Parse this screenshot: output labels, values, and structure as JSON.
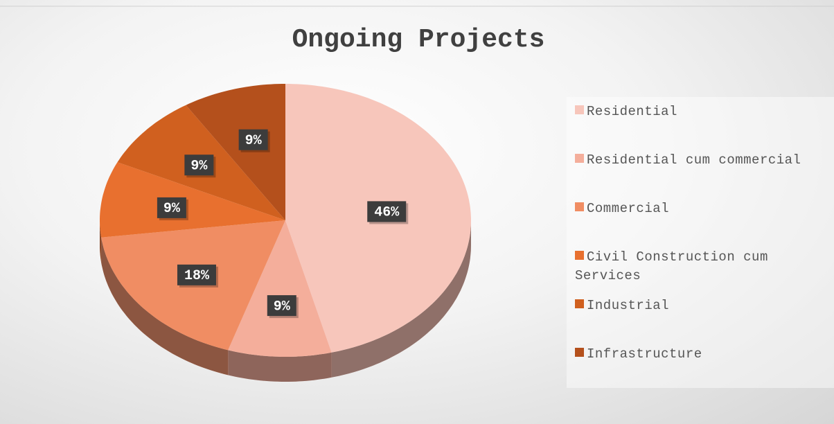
{
  "chart_data": {
    "type": "pie",
    "title": "Ongoing Projects",
    "categories": [
      "Residential",
      "Residential cum commercial",
      "Commercial",
      "Civil Construction cum Services",
      "Industrial",
      "Infrastructure"
    ],
    "values": [
      46,
      9,
      18,
      9,
      9,
      9
    ],
    "value_labels": [
      "46%",
      "9%",
      "18%",
      "9%",
      "9%",
      "9%"
    ],
    "colors": [
      "#f7c6bb",
      "#f4ae9b",
      "#f08d63",
      "#e8702f",
      "#d0601f",
      "#b4501c"
    ],
    "legend": "right"
  }
}
